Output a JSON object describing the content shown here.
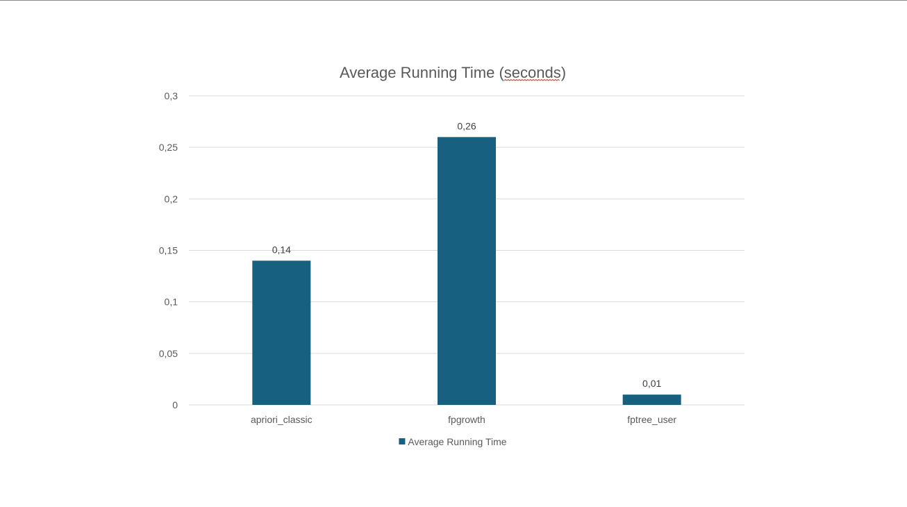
{
  "chart_data": {
    "type": "bar",
    "title_main": "Average Running Time ",
    "title_paren_open": "(",
    "title_unit": "seconds",
    "title_paren_close": ")",
    "categories": [
      "apriori_classic",
      "fpgrowth",
      "fptree_user"
    ],
    "series": [
      {
        "name": "Average Running Time",
        "values": [
          0.14,
          0.26,
          0.01
        ],
        "data_labels": [
          "0,14",
          "0,26",
          "0,01"
        ],
        "color": "#17607f"
      }
    ],
    "y_ticks": [
      0,
      0.05,
      0.1,
      0.15,
      0.2,
      0.25,
      0.3
    ],
    "y_tick_labels": [
      "0",
      "0,05",
      "0,1",
      "0,15",
      "0,2",
      "0,25",
      "0,3"
    ],
    "ylim": [
      0,
      0.3
    ],
    "grid": true,
    "legend_position": "bottom",
    "spellcheck_underlined_word": "seconds"
  }
}
